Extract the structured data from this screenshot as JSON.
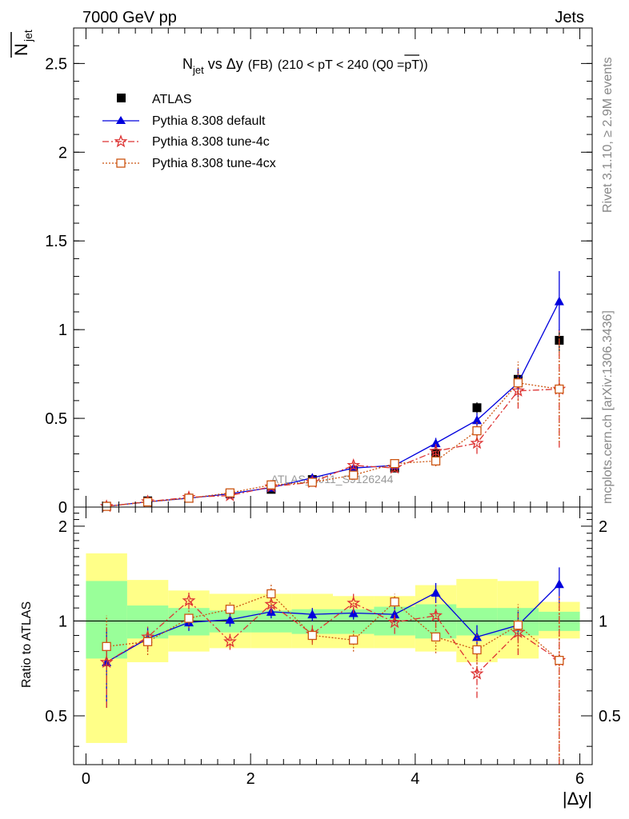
{
  "header": {
    "left": "7000 GeV pp",
    "right": "Jets"
  },
  "side_labels": {
    "rivet": "Rivet 3.1.10, ≥ 2.9M events",
    "mcplots": "mcplots.cern.ch [arXiv:1306.3436]"
  },
  "colors": {
    "atlas": "#000000",
    "default": "#0000dd",
    "tune4c": "#dd3333",
    "tune4cx": "#cc5511",
    "band_inner": "#99ff99",
    "band_outer": "#ffff88",
    "watermark": "#999999"
  },
  "chart_data": [
    {
      "type": "scatter",
      "panel": "main",
      "title": {
        "n": "N",
        "n_sub": "jet",
        "vs": " vs ",
        "dy": "Δy",
        "fb": "(FB)",
        "range": "(210 < pT < 240 (Q0 =",
        "ptbar": "pT",
        "close": "))"
      },
      "ylabel": {
        "n": "N",
        "sub": "jet"
      },
      "xlim": [
        -0.15,
        6.15
      ],
      "ylim": [
        0,
        2.7
      ],
      "yticks": [
        0,
        0.5,
        1,
        1.5,
        2,
        2.5
      ],
      "ytick_labels": [
        "0",
        "0.5",
        "1",
        "1.5",
        "2",
        "2.5"
      ],
      "legend_position": "top-left",
      "watermark": "ATLAS_2011_S9126244",
      "x": [
        0.25,
        0.75,
        1.25,
        1.75,
        2.25,
        2.75,
        3.25,
        3.75,
        4.25,
        4.75,
        5.25,
        5.75
      ],
      "series": [
        {
          "name": "ATLAS",
          "key": "atlas",
          "marker": "square",
          "values": [
            0.005,
            0.035,
            0.05,
            0.075,
            0.1,
            0.155,
            0.205,
            0.22,
            0.3,
            0.56,
            0.72,
            0.94
          ],
          "errors": [
            0.004,
            0.006,
            0.006,
            0.008,
            0.01,
            0.012,
            0.015,
            0.02,
            0.03,
            0.03,
            0.05,
            0.06
          ]
        },
        {
          "name": "Pythia 8.308 default",
          "key": "default",
          "marker": "triangle",
          "values": [
            0.004,
            0.03,
            0.05,
            0.075,
            0.11,
            0.165,
            0.22,
            0.235,
            0.36,
            0.49,
            0.7,
            1.16
          ],
          "errors": [
            0.002,
            0.005,
            0.006,
            0.008,
            0.01,
            0.015,
            0.015,
            0.02,
            0.03,
            0.04,
            0.08,
            0.17
          ]
        },
        {
          "name": "Pythia 8.308 tune-4c",
          "key": "tune4c",
          "marker": "star",
          "values": [
            0.004,
            0.031,
            0.055,
            0.065,
            0.115,
            0.14,
            0.235,
            0.22,
            0.315,
            0.36,
            0.655,
            0.665
          ],
          "errors": [
            0.002,
            0.005,
            0.006,
            0.008,
            0.01,
            0.015,
            0.02,
            0.02,
            0.04,
            0.06,
            0.1,
            0.33
          ]
        },
        {
          "name": "Pythia 8.308 tune-4cx",
          "key": "tune4cx",
          "marker": "open-square",
          "values": [
            0.004,
            0.029,
            0.05,
            0.08,
            0.125,
            0.14,
            0.18,
            0.245,
            0.26,
            0.43,
            0.7,
            0.665
          ],
          "errors": [
            0.002,
            0.005,
            0.006,
            0.008,
            0.01,
            0.015,
            0.02,
            0.02,
            0.03,
            0.05,
            0.12,
            0.3
          ]
        }
      ]
    },
    {
      "type": "scatter",
      "panel": "ratio",
      "ylabel": "Ratio to ATLAS",
      "xlabel": "|Δy|",
      "xlim": [
        -0.15,
        6.15
      ],
      "ylim": [
        0.35,
        2.3
      ],
      "reference_line": 1,
      "yticks": [
        0.5,
        1,
        2
      ],
      "ytick_labels": [
        "0.5",
        "1",
        "2"
      ],
      "xticks": [
        0,
        2,
        4,
        6
      ],
      "xtick_labels": [
        "0",
        "2",
        "4",
        "6"
      ],
      "x": [
        0.25,
        0.75,
        1.25,
        1.75,
        2.25,
        2.75,
        3.25,
        3.75,
        4.25,
        4.75,
        5.25,
        5.75
      ],
      "bands": {
        "bin_edges": [
          0,
          0.5,
          1.0,
          1.5,
          2.0,
          2.5,
          3.0,
          3.5,
          4.0,
          4.5,
          5.0,
          5.5,
          6.0
        ],
        "inner": [
          [
            0.76,
            1.34
          ],
          [
            0.88,
            1.12
          ],
          [
            0.9,
            1.1
          ],
          [
            0.92,
            1.08
          ],
          [
            0.92,
            1.08
          ],
          [
            0.91,
            1.09
          ],
          [
            0.91,
            1.09
          ],
          [
            0.9,
            1.11
          ],
          [
            0.88,
            1.13
          ],
          [
            0.9,
            1.1
          ],
          [
            0.9,
            1.1
          ],
          [
            0.93,
            1.07
          ]
        ],
        "outer": [
          [
            0.41,
            1.64
          ],
          [
            0.74,
            1.35
          ],
          [
            0.8,
            1.25
          ],
          [
            0.82,
            1.22
          ],
          [
            0.82,
            1.22
          ],
          [
            0.82,
            1.22
          ],
          [
            0.82,
            1.2
          ],
          [
            0.82,
            1.2
          ],
          [
            0.8,
            1.3
          ],
          [
            0.74,
            1.36
          ],
          [
            0.76,
            1.34
          ],
          [
            0.88,
            1.15
          ]
        ]
      },
      "series": [
        {
          "name": "Pythia 8.308 default",
          "key": "default",
          "marker": "triangle",
          "values": [
            0.74,
            0.88,
            0.99,
            1.01,
            1.07,
            1.05,
            1.06,
            1.05,
            1.23,
            0.89,
            0.97,
            1.31
          ],
          "errors": [
            0.21,
            0.07,
            0.06,
            0.05,
            0.05,
            0.05,
            0.05,
            0.06,
            0.09,
            0.08,
            0.1,
            0.17
          ]
        },
        {
          "name": "Pythia 8.308 tune-4c",
          "key": "tune4c",
          "marker": "star",
          "values": [
            0.74,
            0.89,
            1.16,
            0.86,
            1.13,
            0.91,
            1.14,
            0.99,
            1.04,
            0.68,
            0.92,
            0.75
          ],
          "errors": [
            0.21,
            0.08,
            0.07,
            0.05,
            0.07,
            0.06,
            0.08,
            0.08,
            0.09,
            0.11,
            0.14,
            0.45
          ]
        },
        {
          "name": "Pythia 8.308 tune-4cx",
          "key": "tune4cx",
          "marker": "open-square",
          "values": [
            0.83,
            0.86,
            1.02,
            1.09,
            1.22,
            0.9,
            0.87,
            1.15,
            0.89,
            0.81,
            0.97,
            0.75
          ],
          "errors": [
            0.21,
            0.08,
            0.07,
            0.06,
            0.1,
            0.06,
            0.07,
            0.07,
            0.1,
            0.1,
            0.16,
            0.45
          ]
        }
      ]
    }
  ]
}
